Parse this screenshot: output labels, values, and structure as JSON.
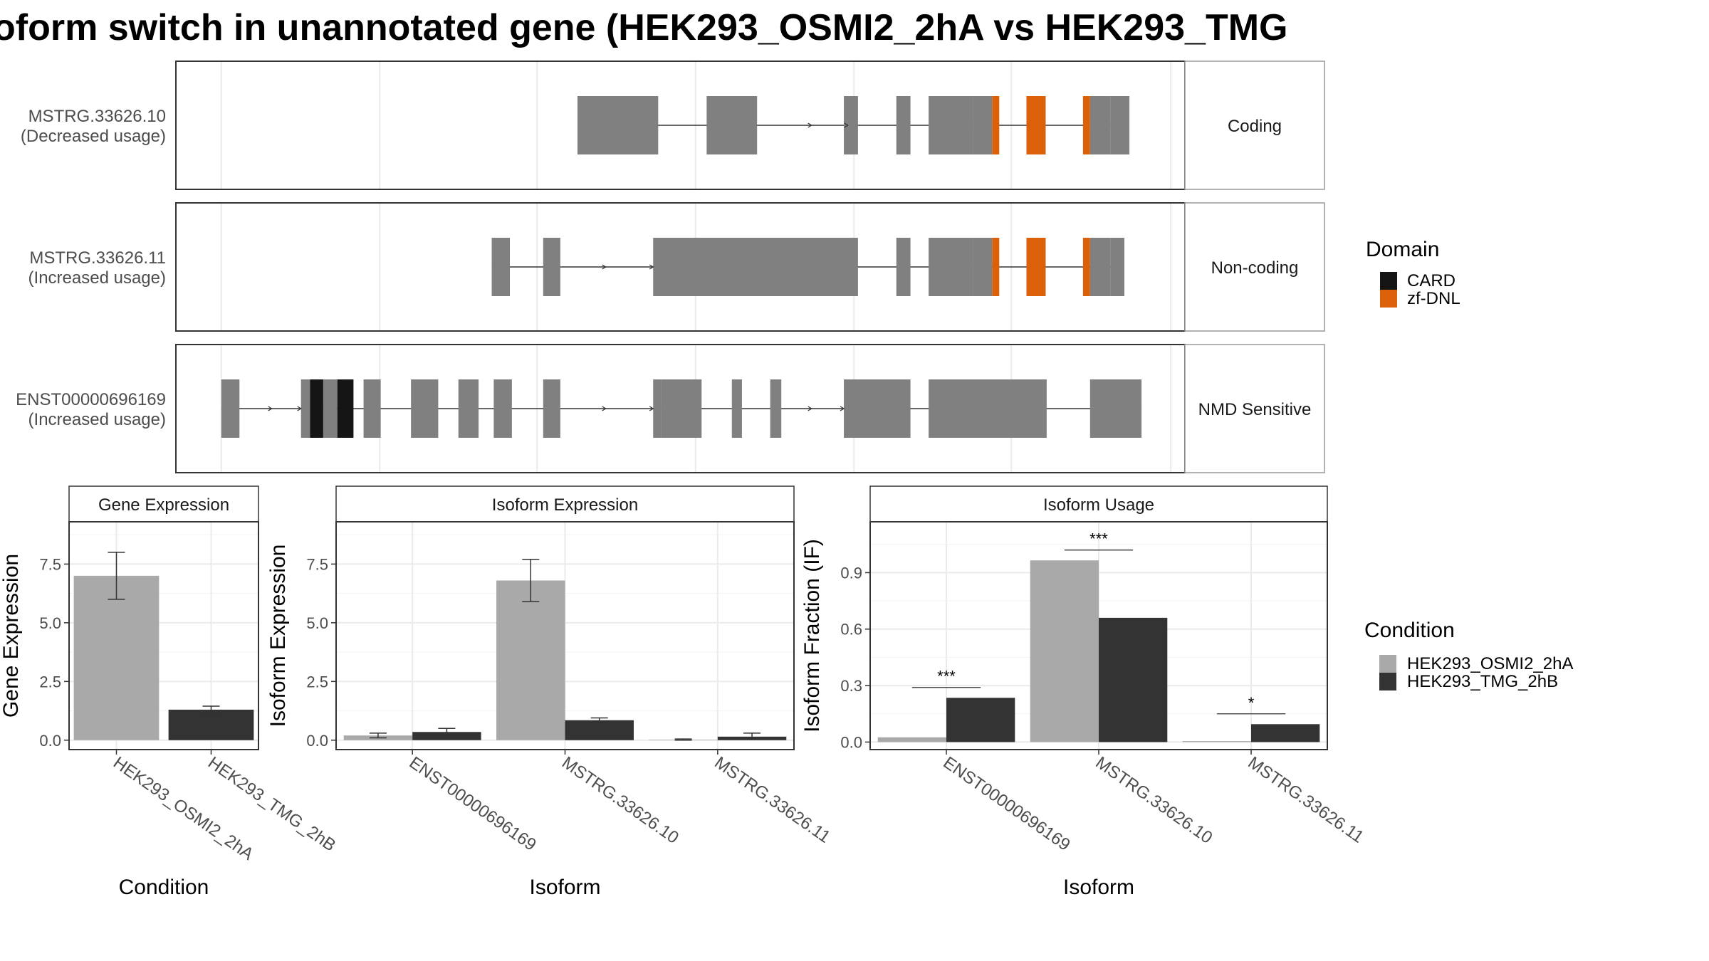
{
  "title": "oform switch in unannotated gene (HEK293_OSMI2_2hA vs HEK293_TMG",
  "colors": {
    "exon": "#808080",
    "card": "#151515",
    "zf_dnl": "#dc5f0a",
    "osmi": "#a9a9a9",
    "tmg": "#333333",
    "strip_bg": "#ffffff",
    "grid": "#ebebeb"
  },
  "transcripts": [
    {
      "id": "MSTRG.33626.10",
      "usage": "(Decreased usage)",
      "category": "Coding",
      "exons": [
        [
          0.398,
          0.478
        ],
        [
          0.526,
          0.576
        ],
        [
          0.662,
          0.676
        ],
        [
          0.714,
          0.728
        ],
        [
          0.746,
          0.79
        ],
        [
          0.79,
          0.809
        ],
        [
          0.843,
          0.862
        ],
        [
          0.906,
          0.926
        ],
        [
          0.926,
          0.945
        ]
      ],
      "domains": [
        {
          "type": "zf-DNL",
          "range": [
            0.809,
            0.816
          ]
        },
        {
          "type": "zf-DNL",
          "range": [
            0.843,
            0.862
          ]
        },
        {
          "type": "zf-DNL",
          "range": [
            0.899,
            0.906
          ]
        }
      ],
      "arrows": [
        0.63,
        0.666
      ]
    },
    {
      "id": "MSTRG.33626.11",
      "usage": "(Increased usage)",
      "category": "Non-coding",
      "exons": [
        [
          0.313,
          0.331
        ],
        [
          0.364,
          0.381
        ],
        [
          0.473,
          0.676
        ],
        [
          0.714,
          0.728
        ],
        [
          0.746,
          0.79
        ],
        [
          0.79,
          0.809
        ],
        [
          0.843,
          0.862
        ],
        [
          0.906,
          0.926
        ],
        [
          0.926,
          0.94
        ]
      ],
      "domains": [
        {
          "type": "zf-DNL",
          "range": [
            0.809,
            0.816
          ]
        },
        {
          "type": "zf-DNL",
          "range": [
            0.843,
            0.862
          ]
        },
        {
          "type": "zf-DNL",
          "range": [
            0.899,
            0.906
          ]
        }
      ],
      "arrows": [
        0.426,
        0.473
      ]
    },
    {
      "id": "ENST00000696169",
      "usage": "(Increased usage)",
      "category": "NMD Sensitive",
      "exons": [
        [
          0.045,
          0.063
        ],
        [
          0.124,
          0.133
        ],
        [
          0.146,
          0.16
        ],
        [
          0.186,
          0.203
        ],
        [
          0.233,
          0.26
        ],
        [
          0.28,
          0.3
        ],
        [
          0.315,
          0.333
        ],
        [
          0.364,
          0.381
        ],
        [
          0.473,
          0.481
        ],
        [
          0.481,
          0.521
        ],
        [
          0.551,
          0.561
        ],
        [
          0.589,
          0.6
        ],
        [
          0.662,
          0.728
        ],
        [
          0.746,
          0.863
        ],
        [
          0.906,
          0.957
        ]
      ],
      "domains": [
        {
          "type": "CARD",
          "range": [
            0.133,
            0.146
          ]
        },
        {
          "type": "CARD",
          "range": [
            0.16,
            0.176
          ]
        }
      ],
      "arrows": [
        0.095,
        0.124,
        0.426,
        0.473,
        0.63,
        0.662
      ]
    }
  ],
  "domain_legend": {
    "title": "Domain",
    "items": [
      {
        "label": "CARD",
        "color": "#151515"
      },
      {
        "label": "zf-DNL",
        "color": "#dc5f0a"
      }
    ]
  },
  "condition_legend": {
    "title": "Condition",
    "items": [
      {
        "label": "HEK293_OSMI2_2hA",
        "color": "#a9a9a9"
      },
      {
        "label": "HEK293_TMG_2hB",
        "color": "#333333"
      }
    ]
  },
  "chart_data": [
    {
      "type": "bar",
      "title": "Gene Expression",
      "xlabel": "Condition",
      "ylabel": "Gene Expression",
      "ylim": [
        -0.4,
        9.3
      ],
      "yticks": [
        0.0,
        2.5,
        5.0,
        7.5
      ],
      "ytick_labels": [
        "0.0",
        "2.5",
        "5.0",
        "7.5"
      ],
      "categories": [
        "HEK293_OSMI2_2hA",
        "HEK293_TMG_2hB"
      ],
      "values": [
        7.0,
        1.3
      ],
      "errors": [
        [
          6.0,
          8.0
        ],
        [
          1.15,
          1.45
        ]
      ],
      "colors": [
        "#a9a9a9",
        "#333333"
      ]
    },
    {
      "type": "bar",
      "title": "Isoform Expression",
      "xlabel": "Isoform",
      "ylabel": "Isoform Expression",
      "ylim": [
        -0.4,
        9.3
      ],
      "yticks": [
        0.0,
        2.5,
        5.0,
        7.5
      ],
      "ytick_labels": [
        "0.0",
        "2.5",
        "5.0",
        "7.5"
      ],
      "categories": [
        "ENST00000696169",
        "MSTRG.33626.10",
        "MSTRG.33626.11"
      ],
      "series": [
        {
          "name": "HEK293_OSMI2_2hA",
          "values": [
            0.2,
            6.8,
            0.02
          ],
          "errors": [
            [
              0.1,
              0.3
            ],
            [
              5.9,
              7.7
            ],
            [
              0.0,
              0.05
            ]
          ]
        },
        {
          "name": "HEK293_TMG_2hB",
          "values": [
            0.35,
            0.85,
            0.15
          ],
          "errors": [
            [
              0.2,
              0.5
            ],
            [
              0.75,
              0.95
            ],
            [
              0.05,
              0.3
            ]
          ]
        }
      ]
    },
    {
      "type": "bar",
      "title": "Isoform Usage",
      "xlabel": "Isoform",
      "ylabel": "Isoform Fraction (IF)",
      "ylim": [
        -0.04,
        1.17
      ],
      "yticks": [
        0.0,
        0.3,
        0.6,
        0.9
      ],
      "ytick_labels": [
        "0.0",
        "0.3",
        "0.6",
        "0.9"
      ],
      "categories": [
        "ENST00000696169",
        "MSTRG.33626.10",
        "MSTRG.33626.11"
      ],
      "series": [
        {
          "name": "HEK293_OSMI2_2hA",
          "values": [
            0.025,
            0.965,
            0.005
          ]
        },
        {
          "name": "HEK293_TMG_2hB",
          "values": [
            0.235,
            0.66,
            0.095
          ]
        }
      ],
      "significance": [
        {
          "category": "ENST00000696169",
          "label": "***",
          "y": 0.29
        },
        {
          "category": "MSTRG.33626.10",
          "label": "***",
          "y": 1.02
        },
        {
          "category": "MSTRG.33626.11",
          "label": "*",
          "y": 0.15
        }
      ]
    }
  ]
}
